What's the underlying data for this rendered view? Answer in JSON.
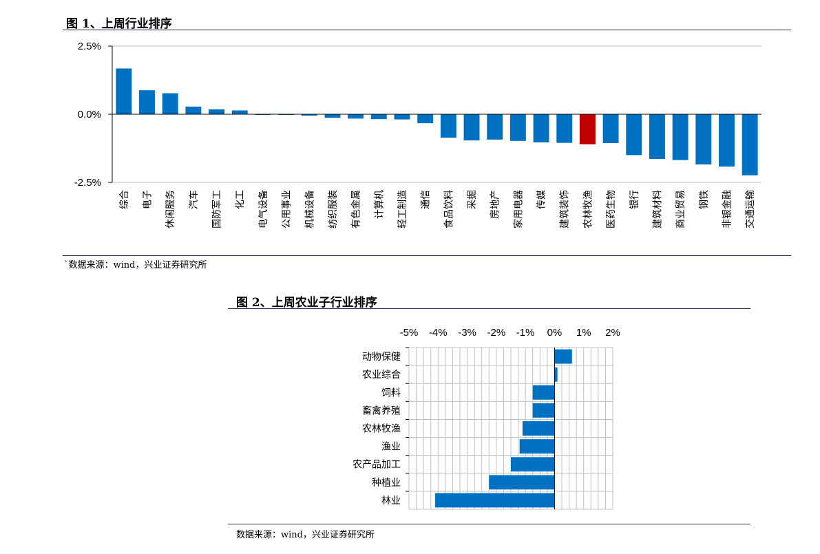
{
  "figure1": {
    "title": "图 1、上周行业排序",
    "source": "`数据来源：wind，兴业证券研究所"
  },
  "figure2": {
    "title": "图 2、上周农业子行业排序",
    "source": "数据来源：wind，兴业证券研究所"
  },
  "colors": {
    "bar": "#0070c0",
    "highlight": "#c00000",
    "rule": "#1f1f5a",
    "grid": "#c0c0c0"
  },
  "chart_data": [
    {
      "type": "bar",
      "title": "图 1、上周行业排序",
      "categories": [
        "综合",
        "电子",
        "休闲服务",
        "汽车",
        "国防军工",
        "化工",
        "电气设备",
        "公用事业",
        "机械设备",
        "纺织服装",
        "有色金属",
        "计算机",
        "轻工制造",
        "通信",
        "食品饮料",
        "采掘",
        "房地产",
        "家用电器",
        "传媒",
        "建筑装饰",
        "农林牧渔",
        "医药生物",
        "银行",
        "建筑材料",
        "商业贸易",
        "钢铁",
        "非银金融",
        "交通运输"
      ],
      "values": [
        1.68,
        0.88,
        0.77,
        0.28,
        0.18,
        0.14,
        -0.01,
        -0.01,
        -0.05,
        -0.13,
        -0.16,
        -0.18,
        -0.19,
        -0.33,
        -0.86,
        -0.96,
        -0.93,
        -0.98,
        -1.03,
        -1.05,
        -1.1,
        -1.06,
        -1.5,
        -1.64,
        -1.68,
        -1.84,
        -1.92,
        -2.24
      ],
      "highlight": "农林牧渔",
      "ylim": [
        -2.5,
        2.5
      ],
      "yticks": [
        "2.5%",
        "0.0%",
        "-2.5%"
      ],
      "grid": true
    },
    {
      "type": "bar",
      "orientation": "horizontal",
      "title": "图 2、上周农业子行业排序",
      "categories": [
        "动物保健",
        "农业综合",
        "饲料",
        "畜禽养殖",
        "农林牧渔",
        "渔业",
        "农产品加工",
        "种植业",
        "林业"
      ],
      "values": [
        0.6,
        0.1,
        -0.75,
        -0.75,
        -1.1,
        -1.2,
        -1.5,
        -2.25,
        -4.1
      ],
      "xlim": [
        -5,
        2
      ],
      "xticks": [
        "-5%",
        "-4%",
        "-3%",
        "-2%",
        "-1%",
        "0%",
        "1%",
        "2%"
      ],
      "grid": true
    }
  ]
}
